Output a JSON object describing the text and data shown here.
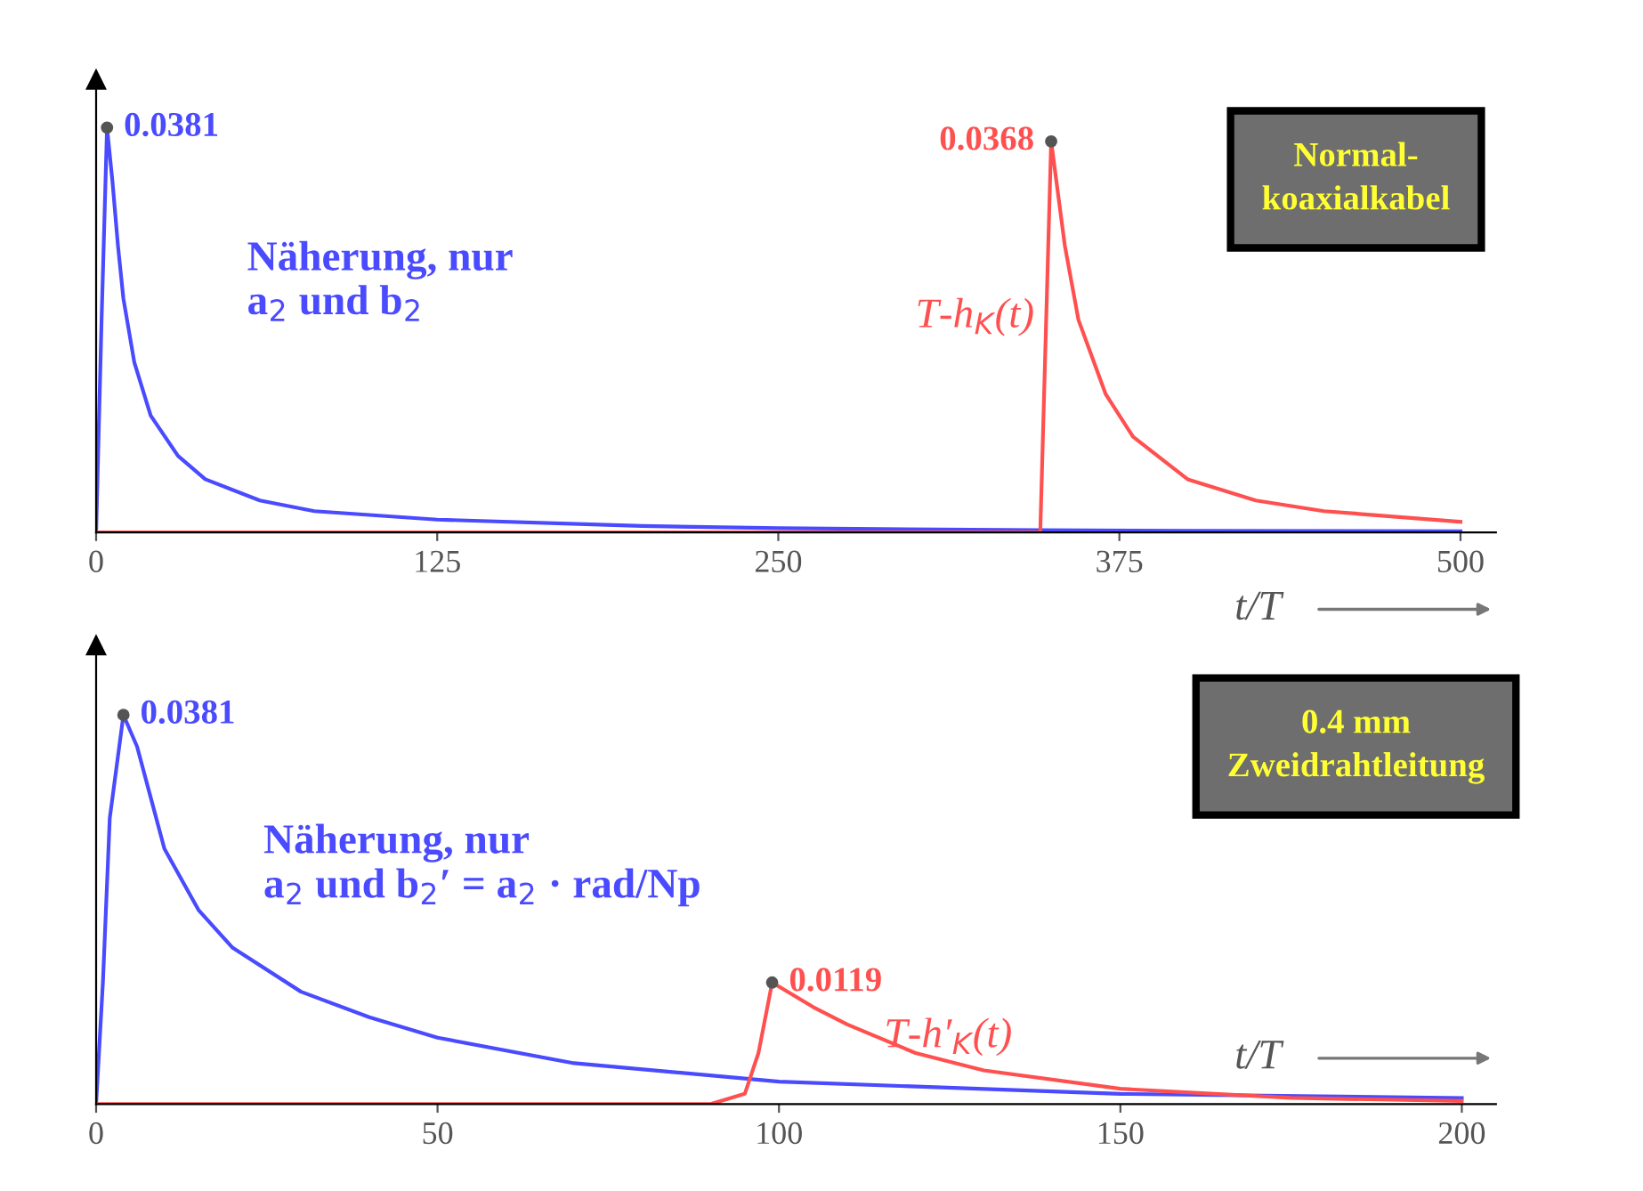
{
  "chart_data": [
    {
      "type": "line",
      "xlabel": "t/T",
      "xlim": [
        0,
        513
      ],
      "xticks": [
        0,
        125,
        250,
        375,
        500
      ],
      "ylim": [
        0,
        0.0426
      ],
      "tick_labels": "x",
      "grid": false,
      "legend": false,
      "marker": "none",
      "line_style": "solid",
      "annotations": [
        "Normal-\nkoaxialkabel"
      ],
      "series": [
        {
          "name": "Näherung, nur\na$_{2}$ und b$_{2}$",
          "color": "#4a4aff",
          "x": [
            0,
            2,
            4,
            6,
            8,
            10,
            14,
            20,
            30,
            40,
            60,
            80,
            125,
            200,
            250,
            345,
            400,
            500
          ],
          "values": [
            0,
            0.02,
            0.0381,
            0.033,
            0.027,
            0.022,
            0.016,
            0.011,
            0.0072,
            0.005,
            0.003,
            0.002,
            0.0012,
            0.0006,
            0.0004,
            0.0002,
            0.00015,
            0.0001
          ],
          "value_labels": [
            null,
            null,
            "0.0381",
            null,
            null,
            null,
            null,
            null,
            null,
            null,
            null,
            null,
            null,
            null,
            null,
            null,
            null,
            null
          ]
        },
        {
          "name": "T-h$_{K}$(t)",
          "color": "#ff5050",
          "x": [
            0,
            346,
            350,
            355,
            360,
            370,
            380,
            400,
            425,
            450,
            500
          ],
          "values": [
            0,
            0,
            0.0368,
            0.027,
            0.02,
            0.013,
            0.009,
            0.005,
            0.003,
            0.002,
            0.001
          ],
          "value_labels": [
            null,
            null,
            "0.0368",
            null,
            null,
            null,
            null,
            null,
            null,
            null,
            null
          ]
        }
      ]
    },
    {
      "type": "line",
      "xlabel": "t/T",
      "xlim": [
        0,
        205
      ],
      "xticks": [
        0,
        50,
        100,
        150,
        200
      ],
      "ylim": [
        0,
        0.0449
      ],
      "tick_labels": "x",
      "grid": false,
      "legend": false,
      "marker": "none",
      "line_style": "solid",
      "annotations": [
        "0.4 mm\nZweidrahtleitung"
      ],
      "series": [
        {
          "name": "Näherung, nur\na$_{2}$ und b$_{2}$′ = a$_{2}$ · rad/Np",
          "color": "#4a4aff",
          "x": [
            0,
            1,
            2,
            4,
            6,
            8,
            10,
            15,
            20,
            30,
            40,
            50,
            70,
            100,
            150,
            200
          ],
          "values": [
            0,
            0.012,
            0.028,
            0.0381,
            0.035,
            0.03,
            0.025,
            0.019,
            0.0153,
            0.011,
            0.0085,
            0.0065,
            0.004,
            0.0022,
            0.001,
            0.0006
          ],
          "value_labels": [
            null,
            null,
            null,
            "0.0381",
            null,
            null,
            null,
            null,
            null,
            null,
            null,
            null,
            null,
            null,
            null,
            null
          ]
        },
        {
          "name": "T-h′$_{K}$(t)",
          "color": "#ff5050",
          "x": [
            0,
            90,
            95,
            97,
            99,
            105,
            110,
            120,
            130,
            150,
            175,
            200
          ],
          "values": [
            0,
            0,
            0.001,
            0.005,
            0.0119,
            0.0095,
            0.0078,
            0.005,
            0.0033,
            0.0015,
            0.0006,
            0.0003
          ],
          "value_labels": [
            null,
            null,
            null,
            null,
            "0.0119",
            null,
            null,
            null,
            null,
            null,
            null,
            null
          ]
        }
      ]
    }
  ]
}
